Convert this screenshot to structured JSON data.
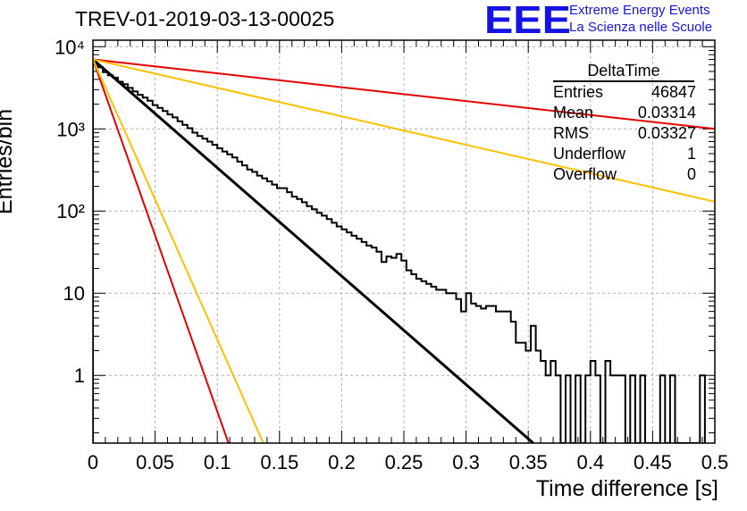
{
  "title": "TREV-01-2019-03-13-00025",
  "logo": {
    "text": "EEE",
    "line1": "Extreme Energy Events",
    "line2": "La Scienza nelle Scuole",
    "color": "#1414e6"
  },
  "stats_box": {
    "header": "DeltaTime",
    "rows": [
      {
        "label": "Entries",
        "value": "46847"
      },
      {
        "label": "Mean",
        "value": "0.03314"
      },
      {
        "label": "RMS",
        "value": "0.03327"
      },
      {
        "label": "Underflow",
        "value": "1"
      },
      {
        "label": "Overflow",
        "value": "0"
      }
    ]
  },
  "chart_data": {
    "type": "line",
    "xlabel": "Time difference [s]",
    "ylabel": "Entries/bin",
    "xlim": [
      0,
      0.5
    ],
    "ylim": [
      0.15,
      12000
    ],
    "yscale": "log",
    "grid": true,
    "x_ticks": [
      "0",
      "0.05",
      "0.1",
      "0.15",
      "0.2",
      "0.25",
      "0.3",
      "0.35",
      "0.4",
      "0.45",
      "0.5"
    ],
    "y_ticks": [
      {
        "value": 1,
        "label": "1"
      },
      {
        "value": 10,
        "label": "10"
      },
      {
        "value": 100,
        "label": "10²"
      },
      {
        "value": 1000,
        "label": "10³"
      },
      {
        "value": 10000,
        "label": "10⁴"
      }
    ],
    "histogram": {
      "color": "#000000",
      "bin_width": 0.004,
      "x_start": 0,
      "counts": [
        6000,
        5600,
        4900,
        4500,
        4200,
        3750,
        3500,
        3150,
        2850,
        2600,
        2400,
        2200,
        1950,
        1800,
        1650,
        1500,
        1380,
        1240,
        1120,
        1020,
        900,
        820,
        760,
        700,
        640,
        580,
        530,
        490,
        450,
        400,
        360,
        320,
        300,
        270,
        250,
        230,
        210,
        190,
        190,
        170,
        150,
        140,
        128,
        115,
        105,
        95,
        88,
        80,
        72,
        65,
        60,
        55,
        50,
        46,
        42,
        38,
        36,
        32,
        24,
        28,
        27,
        30,
        25,
        19,
        17,
        15,
        14,
        13,
        12,
        11,
        11,
        10,
        10,
        8.5,
        6,
        10,
        7.5,
        7,
        6.5,
        7,
        7,
        6,
        6,
        6,
        4.5,
        2.5,
        2.5,
        2,
        4,
        2,
        1.5,
        1,
        1.5,
        1,
        0.1,
        1,
        0.1,
        1,
        0.1,
        1,
        1.5,
        1,
        0.1,
        1.5,
        1,
        1,
        1,
        0.1,
        1,
        0.1,
        1,
        0.1,
        0.1,
        0.1,
        1,
        0.1,
        1,
        0.1,
        0.1,
        0.1,
        0.1,
        0.1,
        1
      ]
    },
    "series": [
      {
        "color": "#000000",
        "x": [
          0,
          0.354
        ],
        "y": [
          7000,
          0.15
        ]
      },
      {
        "color": "#e60000",
        "x": [
          0,
          0.5
        ],
        "y": [
          7000,
          1000
        ]
      },
      {
        "color": "#e60000",
        "x": [
          0,
          0.109
        ],
        "y": [
          7000,
          0.15
        ]
      },
      {
        "color": "#ffc000",
        "x": [
          0,
          0.5
        ],
        "y": [
          7000,
          130
        ]
      },
      {
        "color": "#ffc000",
        "x": [
          0,
          0.137
        ],
        "y": [
          7000,
          0.15
        ]
      }
    ]
  }
}
